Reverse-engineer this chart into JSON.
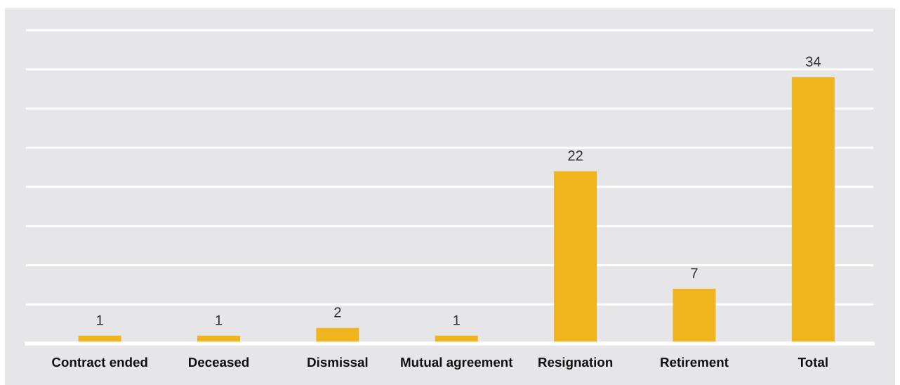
{
  "chart_data": {
    "type": "bar",
    "categories": [
      "Contract ended",
      "Deceased",
      "Dismissal",
      "Mutual agreement",
      "Resignation",
      "Retirement",
      "Total"
    ],
    "values": [
      1,
      1,
      2,
      1,
      22,
      7,
      34
    ],
    "color": "#f0b41e",
    "ylim": [
      0,
      40
    ],
    "yticks": [
      {
        "value": 5,
        "label": null
      },
      {
        "value": 10,
        "label": null
      },
      {
        "value": 15,
        "label": null
      },
      {
        "value": 20,
        "label": null
      },
      {
        "value": 25,
        "label": null
      },
      {
        "value": 30,
        "label": null
      },
      {
        "value": 35,
        "label": null
      },
      {
        "value": 40,
        "label": null
      }
    ],
    "grid": "y",
    "tick_labels": "x",
    "data_labels": true,
    "legend": false
  }
}
